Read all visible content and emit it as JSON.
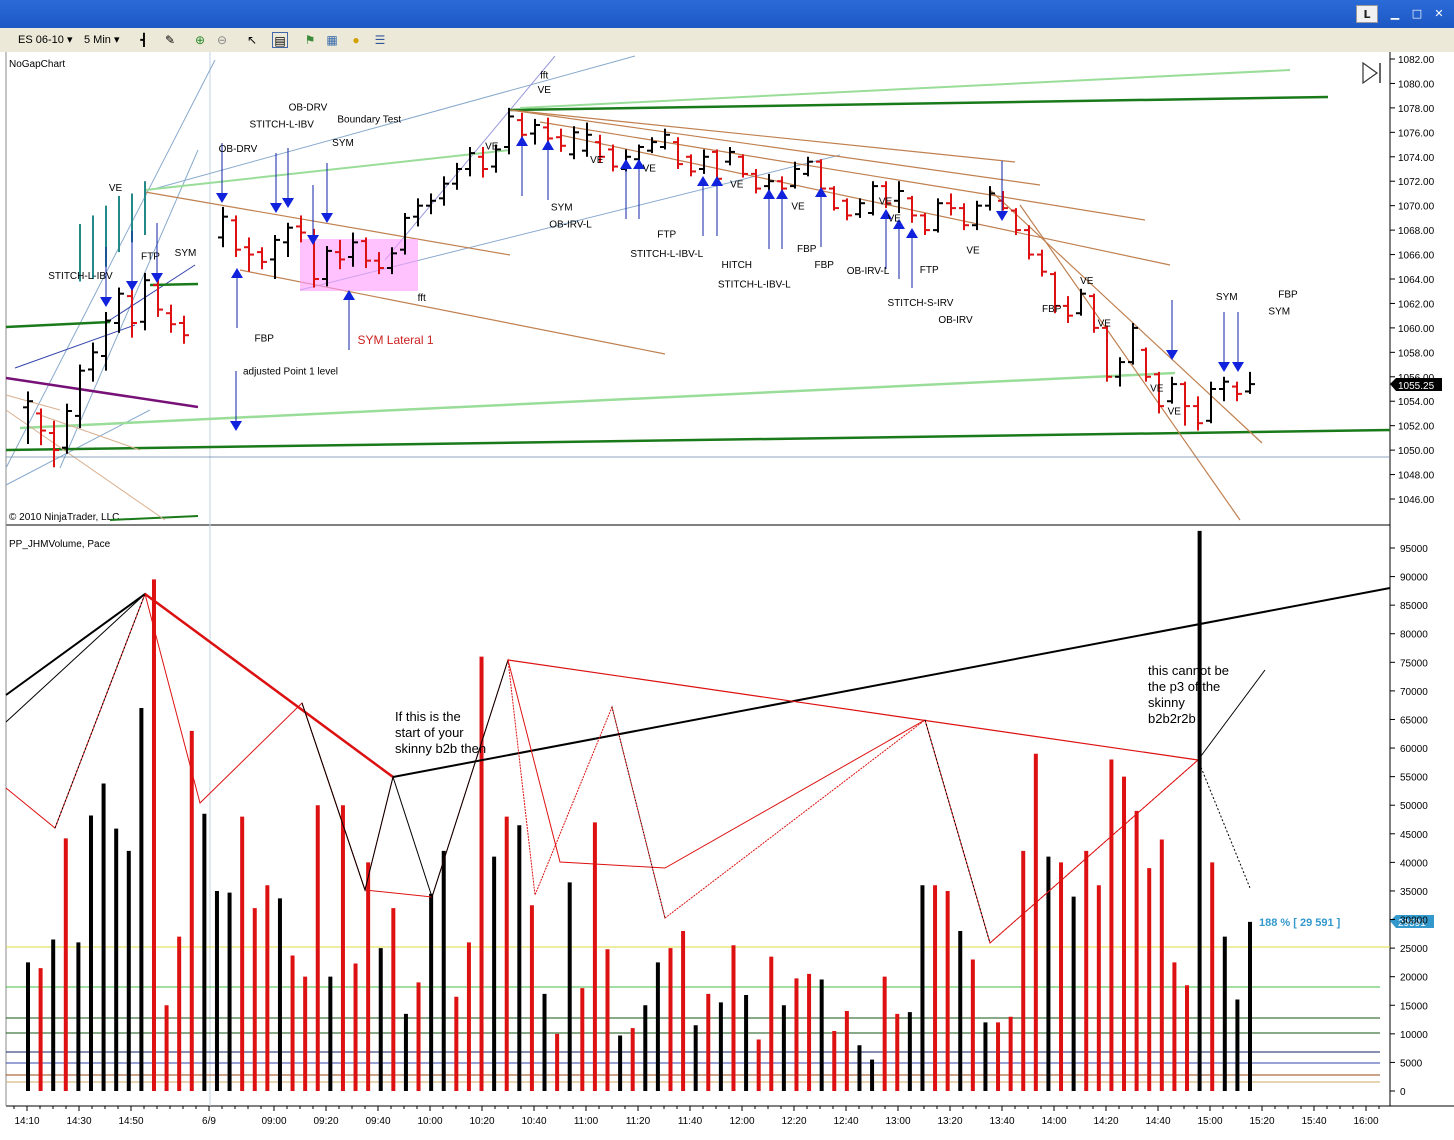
{
  "window": {
    "buttons": [
      "L",
      "▁",
      "□",
      "✕"
    ]
  },
  "toolbar": {
    "instrument": "ES 06-10",
    "interval": "5 Min"
  },
  "icons": [
    "bar-type-icon",
    "draw-pencil-icon",
    "zoom-in-icon",
    "zoom-out-icon",
    "cursor-icon",
    "data-box-icon",
    "strategy-icon",
    "indicators-icon",
    "coin-icon",
    "properties-icon"
  ],
  "colors": {
    "up_bar": "#000000",
    "down_bar": "#dd1111",
    "marker": "#1122dd",
    "trend_dark_green": "#1a7a1a",
    "trend_light_green": "#99dd99",
    "trend_brown": "#c08050",
    "highlight": "#ff99ff"
  },
  "price_panel": {
    "title": "NoGapChart",
    "copyright": "© 2010 NinjaTrader, LLC",
    "y_ticks": [
      1046,
      1048,
      1050,
      1052,
      1054,
      1056,
      1058,
      1060,
      1062,
      1064,
      1066,
      1068,
      1070,
      1072,
      1074,
      1076,
      1078,
      1080,
      1082
    ],
    "y_tick_labels": [
      "1046.00",
      "1048.00",
      "1050.00",
      "1052.00",
      "1054.00",
      "1056.00",
      "1058.00",
      "1060.00",
      "1062.00",
      "1064.00",
      "1066.00",
      "1068.00",
      "1070.00",
      "1072.00",
      "1074.00",
      "1076.00",
      "1078.00",
      "1080.00",
      "1082.00"
    ],
    "last_price": "1055.25",
    "annotations": [
      {
        "text": "VE",
        "bar": 5,
        "price": 1071.2
      },
      {
        "text": "STITCH-L-IBV",
        "bar": 3,
        "price": 1064
      },
      {
        "text": "FTP",
        "bar": 7,
        "price": 1065.6
      },
      {
        "text": "SYM",
        "bar": 9,
        "price": 1065.9
      },
      {
        "text": "OB-DRV",
        "bar": 12,
        "price": 1074.4
      },
      {
        "text": "STITCH-L-IBV",
        "bar": 14.5,
        "price": 1076.4
      },
      {
        "text": "OB-DRV",
        "bar": 16,
        "price": 1077.8
      },
      {
        "text": "Boundary Test",
        "bar": 19.5,
        "price": 1076.8
      },
      {
        "text": "SYM",
        "bar": 18,
        "price": 1074.9
      },
      {
        "text": "FBP",
        "bar": 13.5,
        "price": 1058.9
      },
      {
        "text": "SYM Lateral 1",
        "bar": 21,
        "price": 1058.7
      },
      {
        "text": "fft",
        "bar": 22.5,
        "price": 1062.2
      },
      {
        "text": "adjusted Point 1 level",
        "bar": 15,
        "price": 1056.2
      },
      {
        "text": "fft",
        "bar": 29.5,
        "price": 1080.4
      },
      {
        "text": "VE",
        "bar": 29.5,
        "price": 1079.2
      },
      {
        "text": "VE",
        "bar": 26.5,
        "price": 1074.6
      },
      {
        "text": "SYM",
        "bar": 30.5,
        "price": 1069.6
      },
      {
        "text": "OB-IRV-L",
        "bar": 31,
        "price": 1068.2
      },
      {
        "text": "VE",
        "bar": 32.5,
        "price": 1073.5
      },
      {
        "text": "VE",
        "bar": 35.5,
        "price": 1072.8
      },
      {
        "text": "FTP",
        "bar": 36.5,
        "price": 1067.4
      },
      {
        "text": "STITCH-L-IBV-L",
        "bar": 36.5,
        "price": 1065.8
      },
      {
        "text": "VE",
        "bar": 40.5,
        "price": 1071.5
      },
      {
        "text": "HITCH",
        "bar": 40.5,
        "price": 1064.9
      },
      {
        "text": "STITCH-L-IBV-L",
        "bar": 41.5,
        "price": 1063.3
      },
      {
        "text": "VE",
        "bar": 44,
        "price": 1069.7
      },
      {
        "text": "FBP",
        "bar": 44.5,
        "price": 1066.2
      },
      {
        "text": "FBP",
        "bar": 45.5,
        "price": 1064.9
      },
      {
        "text": "VE",
        "bar": 49,
        "price": 1070.1
      },
      {
        "text": "VE",
        "bar": 49.5,
        "price": 1068.7
      },
      {
        "text": "OB-IRV-L",
        "bar": 48,
        "price": 1064.4
      },
      {
        "text": "FTP",
        "bar": 51.5,
        "price": 1064.5
      },
      {
        "text": "STITCH-S-IRV",
        "bar": 51,
        "price": 1061.8
      },
      {
        "text": "VE",
        "bar": 54,
        "price": 1066.1
      },
      {
        "text": "OB-IRV",
        "bar": 53,
        "price": 1060.4
      },
      {
        "text": "FBP",
        "bar": 58.5,
        "price": 1061.3
      },
      {
        "text": "VE",
        "bar": 60.5,
        "price": 1063.6
      },
      {
        "text": "VE",
        "bar": 61.5,
        "price": 1060.1
      },
      {
        "text": "SYM",
        "bar": 68.5,
        "price": 1062.3
      },
      {
        "text": "FBP",
        "bar": 72,
        "price": 1062.5
      },
      {
        "text": "SYM",
        "bar": 71.5,
        "price": 1061.1
      },
      {
        "text": "VE",
        "bar": 64.5,
        "price": 1054.8
      },
      {
        "text": "VE",
        "bar": 65.5,
        "price": 1052.9
      }
    ]
  },
  "volume_panel": {
    "title": "PP_JHMVolume, Pace",
    "y_ticks": [
      0,
      5000,
      10000,
      15000,
      20000,
      25000,
      30000,
      35000,
      40000,
      45000,
      50000,
      55000,
      60000,
      65000,
      70000,
      75000,
      80000,
      85000,
      90000,
      95000
    ],
    "y_tick_labels": [
      "0",
      "5000",
      "10000",
      "15000",
      "20000",
      "25000",
      "30000",
      "35000",
      "40000",
      "45000",
      "50000",
      "55000",
      "60000",
      "65000",
      "70000",
      "75000",
      "80000",
      "85000",
      "90000",
      "95000"
    ],
    "pace_label": "188 % [ 29 591 ]",
    "last_volume": "29591",
    "note_1": [
      "If this is the",
      "start of your",
      "skinny b2b then"
    ],
    "note_2": [
      "this cannot be",
      "the p3 of the",
      "skinny",
      "b2b2r2b"
    ]
  },
  "x_axis": {
    "tick_labels": [
      "14:10",
      "14:30",
      "14:50",
      "6/9",
      "09:00",
      "09:20",
      "09:40",
      "10:00",
      "10:20",
      "10:40",
      "11:00",
      "11:20",
      "11:40",
      "12:00",
      "12:20",
      "12:40",
      "13:00",
      "13:20",
      "13:40",
      "14:00",
      "14:20",
      "14:40",
      "15:00",
      "15:20",
      "15:40",
      "16:00"
    ]
  },
  "chart_data": {
    "type": "bar",
    "title": "NoGapChart",
    "instrument": "ES 06-10",
    "interval": "5 Min",
    "bar_types": [
      "OHLC price bars",
      "volume bars"
    ],
    "x_categories": [
      "14:10",
      "14:30",
      "14:50",
      "6/9",
      "09:00",
      "09:20",
      "09:40",
      "10:00",
      "10:20",
      "10:40",
      "11:00",
      "11:20",
      "11:40",
      "12:00",
      "12:20",
      "12:40",
      "13:00",
      "13:20",
      "13:40",
      "14:00",
      "14:20",
      "14:40",
      "15:00",
      "15:20",
      "15:40",
      "16:00"
    ],
    "price_ylim": [
      1045,
      1082
    ],
    "volume_ylim": [
      0,
      98000
    ],
    "price_bars": [
      {
        "o": 1053.5,
        "h": 1054.8,
        "l": 1050.5,
        "c": 1054.0,
        "up": true
      },
      {
        "o": 1053.0,
        "h": 1053.4,
        "l": 1050.4,
        "c": 1051.6,
        "up": false
      },
      {
        "o": 1051.4,
        "h": 1052.4,
        "l": 1048.6,
        "c": 1050.0,
        "up": false
      },
      {
        "o": 1050.2,
        "h": 1053.8,
        "l": 1049.7,
        "c": 1053.2,
        "up": true
      },
      {
        "o": 1052.8,
        "h": 1057.0,
        "l": 1051.8,
        "c": 1056.5,
        "up": true
      },
      {
        "o": 1056.6,
        "h": 1058.8,
        "l": 1055.6,
        "c": 1058.0,
        "up": true
      },
      {
        "o": 1057.7,
        "h": 1061.3,
        "l": 1056.5,
        "c": 1060.6,
        "up": true
      },
      {
        "o": 1060.4,
        "h": 1063.3,
        "l": 1059.6,
        "c": 1062.8,
        "up": true
      },
      {
        "o": 1062.6,
        "h": 1063.6,
        "l": 1059.2,
        "c": 1060.4,
        "up": false
      },
      {
        "o": 1060.5,
        "h": 1064.5,
        "l": 1059.8,
        "c": 1063.9,
        "up": true
      },
      {
        "o": 1063.5,
        "h": 1064.1,
        "l": 1060.9,
        "c": 1061.5,
        "up": false
      },
      {
        "o": 1061.2,
        "h": 1061.9,
        "l": 1059.6,
        "c": 1060.3,
        "up": false
      },
      {
        "o": 1060.4,
        "h": 1061.0,
        "l": 1058.7,
        "c": 1059.4,
        "up": false
      },
      {
        "o": 1067.4,
        "h": 1069.9,
        "l": 1066.6,
        "c": 1069.1,
        "up": true
      },
      {
        "o": 1068.8,
        "h": 1069.2,
        "l": 1065.8,
        "c": 1066.4,
        "up": false
      },
      {
        "o": 1066.6,
        "h": 1067.4,
        "l": 1064.6,
        "c": 1066.0,
        "up": false
      },
      {
        "o": 1066.2,
        "h": 1066.6,
        "l": 1064.8,
        "c": 1065.4,
        "up": false
      },
      {
        "o": 1065.6,
        "h": 1067.6,
        "l": 1064.0,
        "c": 1067.2,
        "up": true
      },
      {
        "o": 1067.0,
        "h": 1068.6,
        "l": 1065.8,
        "c": 1068.2,
        "up": true
      },
      {
        "o": 1068.3,
        "h": 1069.2,
        "l": 1067.0,
        "c": 1067.8,
        "up": false
      },
      {
        "o": 1067.5,
        "h": 1068.1,
        "l": 1063.3,
        "c": 1064.0,
        "up": false
      },
      {
        "o": 1064.0,
        "h": 1066.7,
        "l": 1063.4,
        "c": 1066.3,
        "up": true
      },
      {
        "o": 1066.2,
        "h": 1067.2,
        "l": 1064.8,
        "c": 1065.6,
        "up": false
      },
      {
        "o": 1065.8,
        "h": 1067.8,
        "l": 1065.0,
        "c": 1067.0,
        "up": true
      },
      {
        "o": 1067.1,
        "h": 1067.4,
        "l": 1064.9,
        "c": 1065.5,
        "up": false
      },
      {
        "o": 1065.5,
        "h": 1066.2,
        "l": 1064.4,
        "c": 1064.9,
        "up": false
      },
      {
        "o": 1064.9,
        "h": 1066.6,
        "l": 1064.4,
        "c": 1066.1,
        "up": true
      },
      {
        "o": 1066.4,
        "h": 1069.4,
        "l": 1066.0,
        "c": 1069.0,
        "up": true
      },
      {
        "o": 1069.1,
        "h": 1070.6,
        "l": 1068.3,
        "c": 1070.0,
        "up": true
      },
      {
        "o": 1070.0,
        "h": 1071.0,
        "l": 1069.3,
        "c": 1070.4,
        "up": true
      },
      {
        "o": 1070.6,
        "h": 1072.4,
        "l": 1070.0,
        "c": 1071.8,
        "up": true
      },
      {
        "o": 1071.8,
        "h": 1073.5,
        "l": 1071.3,
        "c": 1073.0,
        "up": true
      },
      {
        "o": 1073.0,
        "h": 1074.8,
        "l": 1072.4,
        "c": 1074.3,
        "up": true
      },
      {
        "o": 1074.0,
        "h": 1074.8,
        "l": 1072.3,
        "c": 1073.0,
        "up": false
      },
      {
        "o": 1073.2,
        "h": 1075.0,
        "l": 1072.7,
        "c": 1074.6,
        "up": true
      },
      {
        "o": 1074.8,
        "h": 1078.0,
        "l": 1074.2,
        "c": 1077.3,
        "up": true
      },
      {
        "o": 1077.0,
        "h": 1077.6,
        "l": 1075.2,
        "c": 1075.8,
        "up": false
      },
      {
        "o": 1075.9,
        "h": 1077.1,
        "l": 1075.0,
        "c": 1076.6,
        "up": true
      },
      {
        "o": 1076.4,
        "h": 1077.2,
        "l": 1075.0,
        "c": 1075.5,
        "up": false
      },
      {
        "o": 1075.6,
        "h": 1076.3,
        "l": 1074.4,
        "c": 1074.9,
        "up": false
      }
    ],
    "volume_bars": [
      22500,
      21500,
      26500,
      44200,
      26000,
      48200,
      53800,
      45900,
      42000,
      67000,
      89500,
      15000,
      27000,
      63000,
      48500,
      35000,
      34700,
      48000,
      32000,
      36000,
      33700,
      23700,
      20000,
      50000,
      20000,
      50000,
      22300,
      40000,
      25000,
      32000,
      13500,
      19000,
      34500,
      42000,
      16500,
      26000,
      76000,
      41000,
      48000,
      46500,
      32500,
      17000,
      10000,
      36500,
      18000,
      47000,
      24800,
      9700,
      11000,
      15000,
      22500,
      25000,
      28000,
      11500,
      17000,
      15500,
      25500,
      16800,
      9000,
      23500,
      15000,
      19700,
      20500,
      19500,
      10500,
      14000,
      8000,
      5500,
      20000,
      13500,
      13800,
      36000,
      36000,
      35000,
      28000,
      23000,
      12000,
      12000,
      13000,
      42000,
      59000,
      41000,
      40000,
      34000,
      42000,
      36000,
      58000,
      55000,
      49000,
      39000,
      44000,
      22500,
      18500,
      98000,
      40000,
      27000,
      16000,
      29591
    ],
    "horizontal_levels": [
      1049.5
    ],
    "volume_reference_levels": [
      25000,
      18000,
      13000,
      10000,
      7000,
      5000,
      3000,
      1500
    ]
  }
}
